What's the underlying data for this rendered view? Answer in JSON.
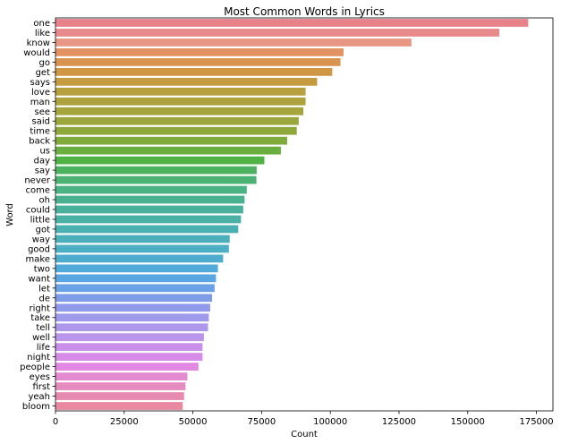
{
  "chart_data": {
    "type": "bar",
    "orientation": "horizontal",
    "title": "Most Common Words in Lyrics",
    "xlabel": "Count",
    "ylabel": "Word",
    "xlim": [
      0,
      181000
    ],
    "xticks": [
      0,
      25000,
      50000,
      75000,
      100000,
      125000,
      150000,
      175000
    ],
    "xtick_labels": [
      "0",
      "25000",
      "50000",
      "75000",
      "100000",
      "125000",
      "150000",
      "175000"
    ],
    "grid": false,
    "categories": [
      "one",
      "like",
      "know",
      "would",
      "go",
      "get",
      "says",
      "love",
      "man",
      "see",
      "said",
      "time",
      "back",
      "us",
      "day",
      "say",
      "never",
      "come",
      "oh",
      "could",
      "little",
      "got",
      "way",
      "good",
      "make",
      "two",
      "want",
      "let",
      "de",
      "right",
      "take",
      "tell",
      "well",
      "life",
      "night",
      "people",
      "eyes",
      "first",
      "yeah",
      "bloom"
    ],
    "values": [
      172000,
      161500,
      129500,
      104800,
      103700,
      100700,
      95200,
      91000,
      91000,
      90200,
      88500,
      87800,
      84300,
      82000,
      76000,
      73200,
      73100,
      69600,
      68800,
      68300,
      67500,
      66500,
      63400,
      63100,
      61000,
      59100,
      58400,
      57900,
      57000,
      56300,
      55800,
      55500,
      54000,
      53500,
      53500,
      52000,
      48000,
      47300,
      46800,
      46300
    ],
    "colors": [
      "#e8828a",
      "#e88a8b",
      "#e89785",
      "#e29262",
      "#d99450",
      "#cf9744",
      "#c49b3e",
      "#b8a040",
      "#aea23e",
      "#a5a43d",
      "#9ba63c",
      "#8fa83c",
      "#7fab3d",
      "#6aae3f",
      "#50b144",
      "#4db25f",
      "#4bb274",
      "#4ab283",
      "#49b18f",
      "#49b09b",
      "#49b0a6",
      "#4ab0b1",
      "#4bb0bb",
      "#4cafc4",
      "#4eadce",
      "#51aad9",
      "#5aa6e2",
      "#6ba1e6",
      "#7f9ce8",
      "#919aea",
      "#9f9aec",
      "#ad98ec",
      "#bb94eb",
      "#c98fea",
      "#d68be8",
      "#e288e2",
      "#e48ad0",
      "#e68bc0",
      "#e78ab0",
      "#e889a1"
    ]
  }
}
